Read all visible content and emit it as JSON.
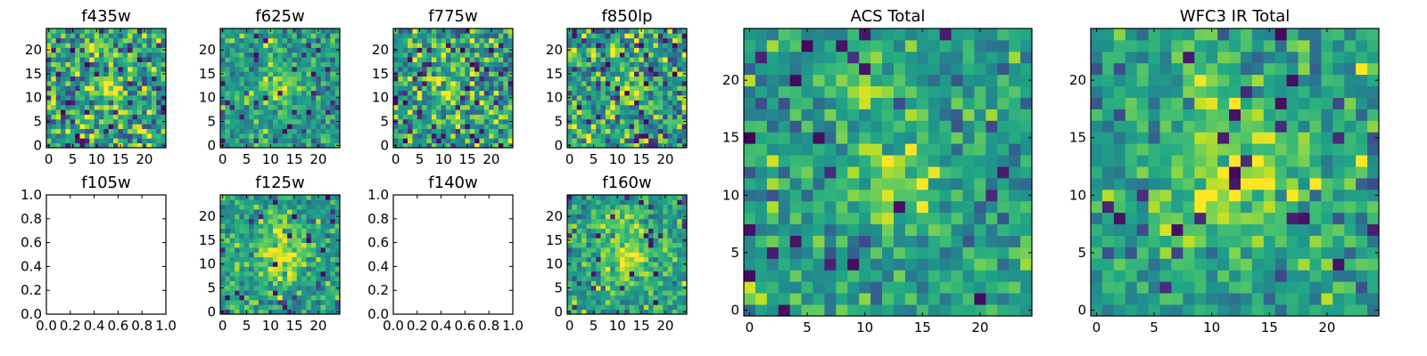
{
  "chart_data": {
    "type": "heatmap",
    "colormap": "viridis",
    "panels": [
      {
        "id": "f435w",
        "title": "f435w",
        "kind": "image",
        "size": 25,
        "xticks": [
          0,
          5,
          10,
          15,
          20
        ],
        "yticks": [
          0,
          5,
          10,
          15,
          20
        ]
      },
      {
        "id": "f625w",
        "title": "f625w",
        "kind": "image",
        "size": 25,
        "xticks": [
          0,
          5,
          10,
          15,
          20
        ],
        "yticks": [
          0,
          5,
          10,
          15,
          20
        ]
      },
      {
        "id": "f775w",
        "title": "f775w",
        "kind": "image",
        "size": 25,
        "xticks": [
          0,
          5,
          10,
          15,
          20
        ],
        "yticks": [
          0,
          5,
          10,
          15,
          20
        ]
      },
      {
        "id": "f850lp",
        "title": "f850lp",
        "kind": "image",
        "size": 25,
        "xticks": [
          0,
          5,
          10,
          15,
          20
        ],
        "yticks": [
          0,
          5,
          10,
          15,
          20
        ]
      },
      {
        "id": "f105w",
        "title": "f105w",
        "kind": "empty",
        "xlim": [
          0,
          1
        ],
        "ylim": [
          0,
          1
        ],
        "xticks": [
          "0.0",
          "0.2",
          "0.4",
          "0.6",
          "0.8",
          "1.0"
        ],
        "yticks": [
          "0.0",
          "0.2",
          "0.4",
          "0.6",
          "0.8",
          "1.0"
        ]
      },
      {
        "id": "f125w",
        "title": "f125w",
        "kind": "image",
        "size": 25,
        "xticks": [
          0,
          5,
          10,
          15,
          20
        ],
        "yticks": [
          0,
          5,
          10,
          15,
          20
        ]
      },
      {
        "id": "f140w",
        "title": "f140w",
        "kind": "empty",
        "xlim": [
          0,
          1
        ],
        "ylim": [
          0,
          1
        ],
        "xticks": [
          "0.0",
          "0.2",
          "0.4",
          "0.6",
          "0.8",
          "1.0"
        ],
        "yticks": [
          "0.0",
          "0.2",
          "0.4",
          "0.6",
          "0.8",
          "1.0"
        ]
      },
      {
        "id": "f160w",
        "title": "f160w",
        "kind": "image",
        "size": 25,
        "xticks": [
          0,
          5,
          10,
          15,
          20
        ],
        "yticks": [
          0,
          5,
          10,
          15,
          20
        ]
      },
      {
        "id": "acs_total",
        "title": "ACS Total",
        "kind": "image",
        "size": 25,
        "xticks": [
          0,
          5,
          10,
          15,
          20
        ],
        "yticks": [
          0,
          5,
          10,
          15,
          20
        ]
      },
      {
        "id": "wfc3_ir_total",
        "title": "WFC3 IR Total",
        "kind": "image",
        "size": 25,
        "xticks": [
          0,
          5,
          10,
          15,
          20
        ],
        "yticks": [
          0,
          5,
          10,
          15,
          20
        ]
      }
    ]
  }
}
